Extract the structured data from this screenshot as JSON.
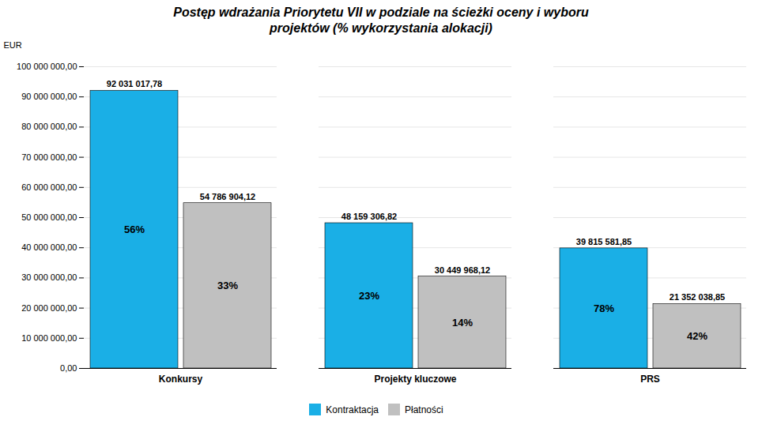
{
  "chart_data": {
    "type": "bar",
    "title": "Postęp wdrażania Priorytetu VII w podziale na ścieżki oceny i wyboru\nprojektów (% wykorzystania alokacji)",
    "categories": [
      "Konkursy",
      "Projekty kluczowe",
      "PRS"
    ],
    "series": [
      {
        "name": "Kontraktacja",
        "color": "#1AAFE6",
        "values": [
          92031017.78,
          48159306.82,
          39815581.85
        ],
        "value_labels": [
          "92 031 017,78",
          "48 159 306,82",
          "39 815 581,85"
        ],
        "share_labels": [
          "56%",
          "23%",
          "78%"
        ]
      },
      {
        "name": "Płatności",
        "color": "#C0C0C0",
        "values": [
          54786904.12,
          30449968.12,
          21352038.85
        ],
        "value_labels": [
          "54 786 904,12",
          "30 449 968,12",
          "21 352 038,85"
        ],
        "share_labels": [
          "33%",
          "14%",
          "42%"
        ]
      }
    ],
    "ylabel": "EUR",
    "ylim": [
      0,
      100000000
    ],
    "yticks": [
      {
        "value": 0,
        "label": "0,00"
      },
      {
        "value": 10000000,
        "label": "10 000 000,00"
      },
      {
        "value": 20000000,
        "label": "20 000 000,00"
      },
      {
        "value": 30000000,
        "label": "30 000 000,00"
      },
      {
        "value": 40000000,
        "label": "40 000 000,00"
      },
      {
        "value": 50000000,
        "label": "50 000 000,00"
      },
      {
        "value": 60000000,
        "label": "60 000 000,00"
      },
      {
        "value": 70000000,
        "label": "70 000 000,00"
      },
      {
        "value": 80000000,
        "label": "80 000 000,00"
      },
      {
        "value": 90000000,
        "label": "90 000 000,00"
      },
      {
        "value": 100000000,
        "label": "100 000 000,00"
      }
    ],
    "grid": true,
    "legend": "bottom",
    "data_labels": true
  }
}
